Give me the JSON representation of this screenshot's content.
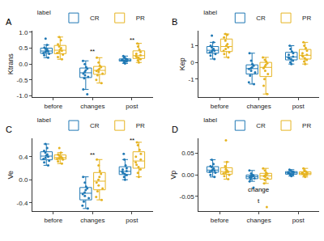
{
  "chart_data": [
    {
      "type": "box",
      "title": "A",
      "y_label": "Ktrans",
      "legend": "top",
      "legend_title": "label",
      "grid": false,
      "categories": [
        "before",
        "changes",
        "post"
      ],
      "ylim": [
        -1.05,
        1.05
      ],
      "yticks": [
        {
          "value": -1,
          "label": "-1.0"
        },
        {
          "value": -0.5,
          "label": "-0.5"
        },
        {
          "value": 0,
          "label": "0.0"
        },
        {
          "value": 0.5,
          "label": "0.5"
        },
        {
          "value": 1,
          "label": "1.0"
        }
      ],
      "annotations": [
        {
          "text": "**",
          "x": "changes",
          "y": 0.4
        },
        {
          "text": "**",
          "x": "post",
          "y": 0.75
        }
      ],
      "series": [
        {
          "name": "CR",
          "color": "#1f78b4",
          "values": [
            [
              0.2,
              0.28,
              0.32,
              0.35,
              0.38,
              0.4,
              0.42,
              0.45,
              0.48,
              0.52,
              0.6,
              0.8
            ],
            [
              -0.95,
              -0.8,
              -0.45,
              -0.4,
              -0.35,
              -0.3,
              -0.25,
              -0.2,
              -0.15,
              -0.1,
              0.0,
              0.1
            ],
            [
              0.02,
              0.05,
              0.08,
              0.1,
              0.11,
              0.12,
              0.13,
              0.14,
              0.15,
              0.17,
              0.2,
              0.25
            ]
          ]
        },
        {
          "name": "PR",
          "color": "#e6b422",
          "values": [
            [
              0.15,
              0.22,
              0.3,
              0.35,
              0.38,
              0.42,
              0.45,
              0.5,
              0.55,
              0.62,
              0.75,
              0.85
            ],
            [
              -0.6,
              -0.5,
              -0.35,
              -0.3,
              -0.25,
              -0.22,
              -0.18,
              -0.15,
              -0.1,
              -0.05,
              0.05,
              0.2
            ],
            [
              0.05,
              0.12,
              0.15,
              0.2,
              0.22,
              0.25,
              0.28,
              0.32,
              0.38,
              0.45,
              0.55,
              0.65
            ]
          ]
        }
      ]
    },
    {
      "type": "box",
      "title": "B",
      "y_label": "Kep",
      "legend": "top",
      "legend_title": "label",
      "grid": false,
      "categories": [
        "before",
        "changes",
        "post"
      ],
      "ylim": [
        -2.1,
        1.9
      ],
      "yticks": [
        -1,
        0,
        1
      ],
      "annotations": [],
      "series": [
        {
          "name": "CR",
          "color": "#1f78b4",
          "values": [
            [
              0.2,
              0.4,
              0.5,
              0.6,
              0.65,
              0.7,
              0.75,
              0.8,
              0.9,
              1.0,
              1.2,
              1.6
            ],
            [
              -1.3,
              -1.2,
              -0.8,
              -0.6,
              -0.5,
              -0.4,
              -0.35,
              -0.3,
              -0.2,
              -0.1,
              0.1,
              0.55
            ],
            [
              -0.1,
              0.0,
              0.1,
              0.2,
              0.25,
              0.3,
              0.35,
              0.45,
              0.55,
              0.65,
              0.8,
              1.0
            ]
          ]
        },
        {
          "name": "PR",
          "color": "#e6b422",
          "values": [
            [
              0.3,
              0.5,
              0.6,
              0.7,
              0.8,
              0.9,
              1.0,
              1.1,
              1.3,
              1.5,
              1.65,
              1.7
            ],
            [
              -1.9,
              -1.4,
              -1.0,
              -0.7,
              -0.5,
              -0.35,
              -0.25,
              -0.15,
              -0.05,
              0.05,
              0.15,
              0.3
            ],
            [
              -0.1,
              0.05,
              0.15,
              0.25,
              0.35,
              0.4,
              0.45,
              0.55,
              0.7,
              0.85,
              1.0,
              1.2
            ]
          ]
        }
      ]
    },
    {
      "type": "box",
      "title": "C",
      "y_label": "Ve",
      "legend": "top",
      "legend_title": "label",
      "grid": false,
      "categories": [
        "before",
        "changes",
        "post"
      ],
      "ylim": [
        -0.55,
        0.72
      ],
      "yticks": [
        {
          "value": -0.4,
          "label": "-0.4"
        },
        {
          "value": 0,
          "label": "0.0"
        },
        {
          "value": 0.4,
          "label": "0.4"
        }
      ],
      "annotations": [
        {
          "text": "**",
          "x": "changes",
          "y": 0.43
        },
        {
          "text": "**",
          "x": "post",
          "y": 0.68
        }
      ],
      "series": [
        {
          "name": "CR",
          "color": "#1f78b4",
          "values": [
            [
              0.25,
              0.3,
              0.33,
              0.36,
              0.38,
              0.4,
              0.42,
              0.44,
              0.47,
              0.5,
              0.55,
              0.62
            ],
            [
              -0.5,
              -0.45,
              -0.38,
              -0.32,
              -0.28,
              -0.25,
              -0.22,
              -0.18,
              -0.15,
              -0.12,
              -0.05,
              0.05
            ],
            [
              0.0,
              0.05,
              0.08,
              0.1,
              0.12,
              0.14,
              0.15,
              0.18,
              0.2,
              0.25,
              0.35,
              0.45
            ]
          ]
        },
        {
          "name": "PR",
          "color": "#e6b422",
          "values": [
            [
              0.28,
              0.32,
              0.35,
              0.36,
              0.37,
              0.38,
              0.39,
              0.4,
              0.42,
              0.44,
              0.47,
              0.55
            ],
            [
              -0.35,
              -0.3,
              -0.2,
              -0.15,
              -0.1,
              -0.05,
              0.0,
              0.05,
              0.1,
              0.15,
              0.25,
              0.35
            ],
            [
              0.05,
              0.12,
              0.18,
              0.22,
              0.26,
              0.3,
              0.35,
              0.4,
              0.45,
              0.52,
              0.6,
              0.65
            ]
          ]
        }
      ]
    },
    {
      "type": "box",
      "title": "D",
      "y_label": "Vp",
      "legend": "top",
      "legend_title": "label",
      "grid": false,
      "categories": [
        "before",
        "changes",
        "post"
      ],
      "ylim": [
        -0.085,
        0.085
      ],
      "yticks": [
        {
          "value": -0.05,
          "label": "-0.05"
        },
        {
          "value": 0,
          "label": "0.00"
        },
        {
          "value": 0.05,
          "label": "0.05"
        }
      ],
      "annotations": [
        {
          "text": "change",
          "x": "changes",
          "y": -0.035
        },
        {
          "text": "t",
          "x": "changes",
          "y": -0.06
        }
      ],
      "series": [
        {
          "name": "CR",
          "color": "#1f78b4",
          "values": [
            [
              -0.005,
              0.0,
              0.005,
              0.007,
              0.009,
              0.01,
              0.012,
              0.015,
              0.018,
              0.02,
              0.025,
              0.035
            ],
            [
              -0.03,
              -0.015,
              -0.01,
              -0.008,
              -0.006,
              -0.005,
              -0.004,
              -0.003,
              -0.001,
              0.0,
              0.003,
              0.01
            ],
            [
              -0.003,
              0.0,
              0.001,
              0.002,
              0.003,
              0.004,
              0.005,
              0.006,
              0.007,
              0.008,
              0.01,
              0.012
            ]
          ]
        },
        {
          "name": "PR",
          "color": "#e6b422",
          "values": [
            [
              -0.01,
              -0.003,
              0.0,
              0.003,
              0.005,
              0.007,
              0.008,
              0.01,
              0.013,
              0.02,
              0.03,
              0.08
            ],
            [
              -0.075,
              -0.02,
              -0.012,
              -0.008,
              -0.005,
              -0.003,
              -0.002,
              0.0,
              0.002,
              0.005,
              0.01,
              0.015
            ],
            [
              -0.005,
              -0.002,
              0.0,
              0.001,
              0.002,
              0.003,
              0.004,
              0.005,
              0.006,
              0.008,
              0.01,
              0.015
            ]
          ]
        }
      ]
    }
  ]
}
